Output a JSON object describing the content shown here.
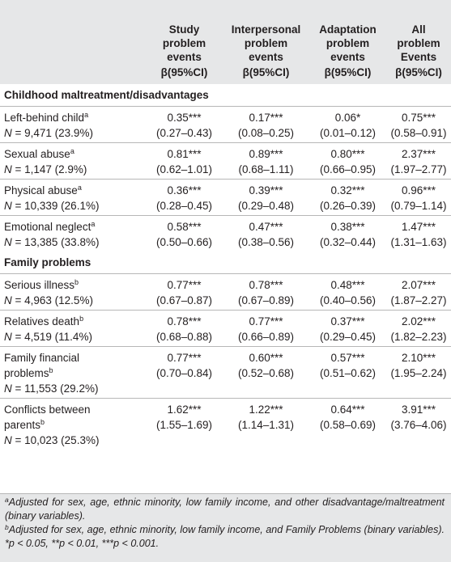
{
  "header": {
    "columns": [
      {
        "lines": [
          "Study",
          "problem",
          "events"
        ],
        "beta": "β(95%CI)"
      },
      {
        "lines": [
          "Interpersonal",
          "problem",
          "events"
        ],
        "beta": "β(95%CI)"
      },
      {
        "lines": [
          "Adaptation",
          "problem",
          "events"
        ],
        "beta": "β(95%CI)"
      },
      {
        "lines": [
          "All",
          "problem",
          "Events"
        ],
        "beta": "β(95%CI)"
      }
    ]
  },
  "sections": [
    {
      "title": "Childhood maltreatment/disadvantages",
      "rows": [
        {
          "label": "Left-behind child",
          "sup": "a",
          "n_prefix": "N",
          "n_text": " = 9,471 (23.9%)",
          "values": [
            [
              "0.35***",
              "(0.27–0.43)"
            ],
            [
              "0.17***",
              "(0.08–0.25)"
            ],
            [
              "0.06*",
              "(0.01–0.12)"
            ],
            [
              "0.75***",
              "(0.58–0.91)"
            ]
          ]
        },
        {
          "label": "Sexual abuse",
          "sup": "a",
          "n_prefix": "N",
          "n_text": " = 1,147 (2.9%)",
          "values": [
            [
              "0.81***",
              "(0.62–1.01)"
            ],
            [
              "0.89***",
              "(0.68–1.11)"
            ],
            [
              "0.80***",
              "(0.66–0.95)"
            ],
            [
              "2.37***",
              "(1.97–2.77)"
            ]
          ]
        },
        {
          "label": "Physical abuse",
          "sup": "a",
          "n_prefix": "N",
          "n_text": " = 10,339 (26.1%)",
          "values": [
            [
              "0.36***",
              "(0.28–0.45)"
            ],
            [
              "0.39***",
              "(0.29–0.48)"
            ],
            [
              "0.32***",
              "(0.26–0.39)"
            ],
            [
              "0.96***",
              "(0.79–1.14)"
            ]
          ]
        },
        {
          "label": "Emotional neglect",
          "sup": "a",
          "n_prefix": "N",
          "n_text": " = 13,385 (33.8%)",
          "values": [
            [
              "0.58***",
              "(0.50–0.66)"
            ],
            [
              "0.47***",
              "(0.38–0.56)"
            ],
            [
              "0.38***",
              "(0.32–0.44)"
            ],
            [
              "1.47***",
              "(1.31–1.63)"
            ]
          ]
        }
      ]
    },
    {
      "title": "Family problems",
      "rows": [
        {
          "label": "Serious illness",
          "sup": "b",
          "n_prefix": "N",
          "n_text": " = 4,963 (12.5%)",
          "values": [
            [
              "0.77***",
              "(0.67–0.87)"
            ],
            [
              "0.78***",
              "(0.67–0.89)"
            ],
            [
              "0.48***",
              "(0.40–0.56)"
            ],
            [
              "2.07***",
              "(1.87–2.27)"
            ]
          ]
        },
        {
          "label": "Relatives death",
          "sup": "b",
          "n_prefix": "N",
          "n_text": " = 4,519 (11.4%)",
          "values": [
            [
              "0.78***",
              "(0.68–0.88)"
            ],
            [
              "0.77***",
              "(0.66–0.89)"
            ],
            [
              "0.37***",
              "(0.29–0.45)"
            ],
            [
              "2.02***",
              "(1.82–2.23)"
            ]
          ]
        },
        {
          "label_lines": [
            "Family financial",
            "problems"
          ],
          "sup": "b",
          "n_prefix": "N",
          "n_text": " = 11,553 (29.2%)",
          "values": [
            [
              "0.77***",
              "(0.70–0.84)"
            ],
            [
              "0.60***",
              "(0.52–0.68)"
            ],
            [
              "0.57***",
              "(0.51–0.62)"
            ],
            [
              "2.10***",
              "(1.95–2.24)"
            ]
          ]
        },
        {
          "label_lines": [
            "Conflicts between",
            "parents"
          ],
          "sup": "b",
          "n_prefix": "N",
          "n_text": " = 10,023 (25.3%)",
          "values": [
            [
              "1.62***",
              "(1.55–1.69)"
            ],
            [
              "1.22***",
              "(1.14–1.31)"
            ],
            [
              "0.64***",
              "(0.58–0.69)"
            ],
            [
              "3.91***",
              "(3.76–4.06)"
            ]
          ]
        }
      ]
    }
  ],
  "notes": {
    "a_sup": "a",
    "a_text": "Adjusted for sex, age, ethnic minority, low family income, and other disadvantage/maltreatment (binary variables).",
    "b_sup": "b",
    "b_text": "Adjusted for sex, age, ethnic minority, low family income, and Family Problems (binary variables). *p < 0.05, **p < 0.01, ***p < 0.001."
  }
}
